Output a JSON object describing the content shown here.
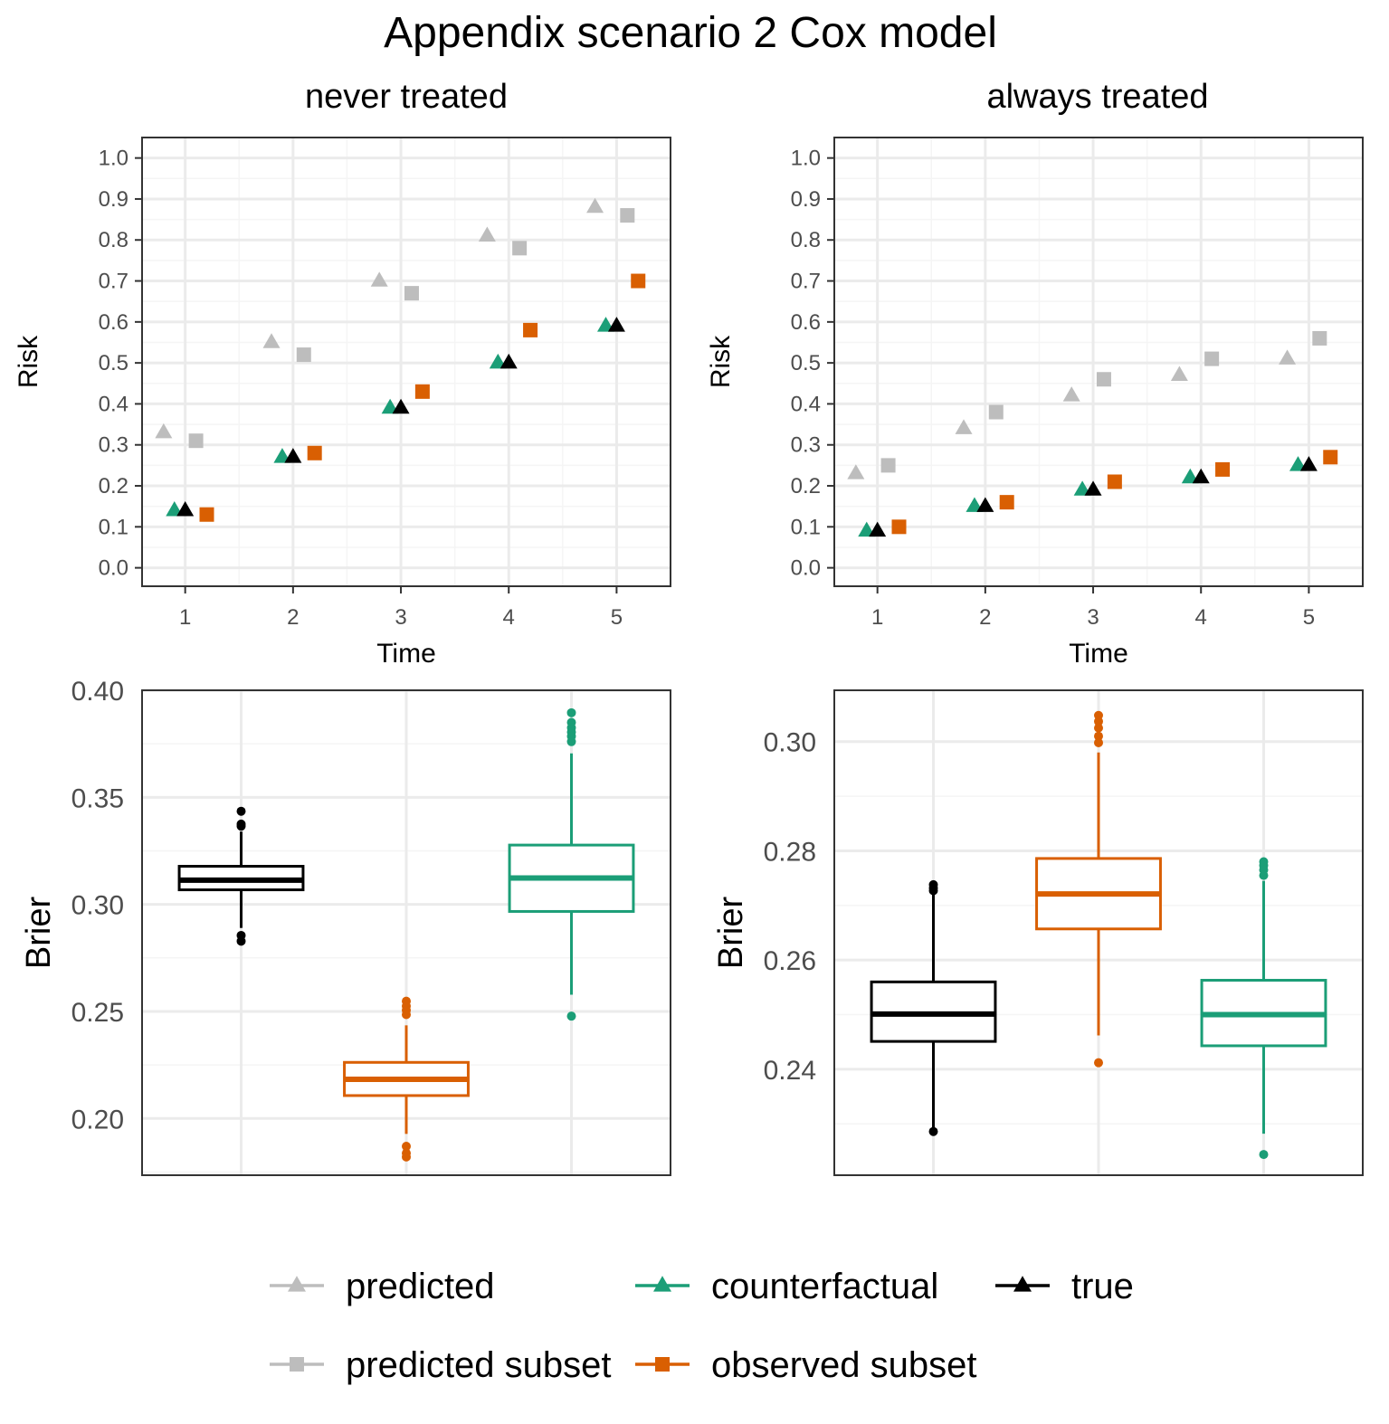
{
  "title": "Appendix scenario 2 Cox model",
  "colors": {
    "predicted": "#bdbdbd",
    "counterfactual": "#1b9e77",
    "true": "#000000",
    "observed": "#d95f02",
    "grid_major": "#ebebeb",
    "grid_minor": "#f5f5f5"
  },
  "legend": [
    {
      "key": "predicted",
      "label": "predicted",
      "shape": "triangle",
      "color": "#bdbdbd"
    },
    {
      "key": "counterfactual",
      "label": "counterfactual",
      "shape": "triangle",
      "color": "#1b9e77"
    },
    {
      "key": "true",
      "label": "true",
      "shape": "triangle",
      "color": "#000000"
    },
    {
      "key": "predicted_subset",
      "label": "predicted subset",
      "shape": "square",
      "color": "#bdbdbd"
    },
    {
      "key": "observed_subset",
      "label": "observed subset",
      "shape": "square",
      "color": "#d95f02"
    }
  ],
  "chart_data": [
    {
      "type": "scatter",
      "panel": "never treated",
      "xlabel": "Time",
      "ylabel": "Risk",
      "xlim": [
        0.6,
        5.5
      ],
      "ylim": [
        -0.045,
        1.05
      ],
      "x_ticks": [
        "1",
        "2",
        "3",
        "4",
        "5"
      ],
      "y_ticks": [
        "0.0",
        "0.1",
        "0.2",
        "0.3",
        "0.4",
        "0.5",
        "0.6",
        "0.7",
        "0.8",
        "0.9",
        "1.0"
      ],
      "x": [
        1,
        2,
        3,
        4,
        5
      ],
      "series": [
        {
          "name": "predicted",
          "shape": "triangle",
          "offset": -0.2,
          "values": [
            0.33,
            0.55,
            0.7,
            0.81,
            0.88
          ]
        },
        {
          "name": "predicted subset",
          "shape": "square",
          "offset": 0.1,
          "values": [
            0.31,
            0.52,
            0.67,
            0.78,
            0.86
          ]
        },
        {
          "name": "counterfactual",
          "shape": "triangle",
          "offset": -0.1,
          "values": [
            0.14,
            0.27,
            0.39,
            0.5,
            0.59
          ]
        },
        {
          "name": "true",
          "shape": "triangle",
          "offset": 0.0,
          "values": [
            0.14,
            0.27,
            0.39,
            0.5,
            0.59
          ]
        },
        {
          "name": "observed subset",
          "shape": "square",
          "offset": 0.2,
          "values": [
            0.13,
            0.28,
            0.43,
            0.58,
            0.7
          ]
        }
      ]
    },
    {
      "type": "scatter",
      "panel": "always treated",
      "xlabel": "Time",
      "ylabel": "Risk",
      "xlim": [
        0.6,
        5.5
      ],
      "ylim": [
        -0.045,
        1.05
      ],
      "x_ticks": [
        "1",
        "2",
        "3",
        "4",
        "5"
      ],
      "y_ticks": [
        "0.0",
        "0.1",
        "0.2",
        "0.3",
        "0.4",
        "0.5",
        "0.6",
        "0.7",
        "0.8",
        "0.9",
        "1.0"
      ],
      "x": [
        1,
        2,
        3,
        4,
        5
      ],
      "series": [
        {
          "name": "predicted",
          "shape": "triangle",
          "offset": -0.2,
          "values": [
            0.23,
            0.34,
            0.42,
            0.47,
            0.51
          ]
        },
        {
          "name": "predicted subset",
          "shape": "square",
          "offset": 0.1,
          "values": [
            0.25,
            0.38,
            0.46,
            0.51,
            0.56
          ]
        },
        {
          "name": "counterfactual",
          "shape": "triangle",
          "offset": -0.1,
          "values": [
            0.09,
            0.15,
            0.19,
            0.22,
            0.25
          ]
        },
        {
          "name": "true",
          "shape": "triangle",
          "offset": 0.0,
          "values": [
            0.09,
            0.15,
            0.19,
            0.22,
            0.25
          ]
        },
        {
          "name": "observed subset",
          "shape": "square",
          "offset": 0.2,
          "values": [
            0.1,
            0.16,
            0.21,
            0.24,
            0.27
          ]
        }
      ]
    },
    {
      "type": "box",
      "panel": "never treated",
      "ylabel": "Brier",
      "ylim": [
        0.1735,
        0.4
      ],
      "y_ticks": [
        "0.20",
        "0.25",
        "0.30",
        "0.35",
        "0.40"
      ],
      "boxes": [
        {
          "name": "true",
          "min": 0.289,
          "q1": 0.3068,
          "median": 0.3113,
          "q3": 0.3178,
          "max": 0.334,
          "outliers": [
            0.3435,
            0.3375,
            0.3365,
            0.2855,
            0.2828
          ]
        },
        {
          "name": "observed subset",
          "min": 0.1928,
          "q1": 0.2107,
          "median": 0.2183,
          "q3": 0.2262,
          "max": 0.2435,
          "outliers": [
            0.2548,
            0.2525,
            0.2505,
            0.2485,
            0.187,
            0.1838,
            0.182
          ]
        },
        {
          "name": "counterfactual",
          "min": 0.2578,
          "q1": 0.2967,
          "median": 0.3123,
          "q3": 0.3277,
          "max": 0.3705,
          "outliers": [
            0.3895,
            0.385,
            0.3825,
            0.3805,
            0.3785,
            0.376,
            0.2478
          ]
        }
      ]
    },
    {
      "type": "box",
      "panel": "always treated",
      "ylabel": "Brier",
      "ylim": [
        0.2206,
        0.3094
      ],
      "y_ticks": [
        "0.24",
        "0.26",
        "0.28",
        "0.30"
      ],
      "boxes": [
        {
          "name": "true",
          "min": 0.2286,
          "q1": 0.2451,
          "median": 0.2501,
          "q3": 0.256,
          "max": 0.2722,
          "outliers": [
            0.2738,
            0.2732,
            0.2727,
            0.2286
          ]
        },
        {
          "name": "observed subset",
          "min": 0.2462,
          "q1": 0.2657,
          "median": 0.2721,
          "q3": 0.2786,
          "max": 0.298,
          "outliers": [
            0.3048,
            0.3037,
            0.3025,
            0.301,
            0.2998,
            0.2412
          ]
        },
        {
          "name": "counterfactual",
          "min": 0.2282,
          "q1": 0.2443,
          "median": 0.25,
          "q3": 0.2563,
          "max": 0.2745,
          "outliers": [
            0.278,
            0.2773,
            0.2765,
            0.2755,
            0.2244
          ]
        }
      ]
    }
  ]
}
